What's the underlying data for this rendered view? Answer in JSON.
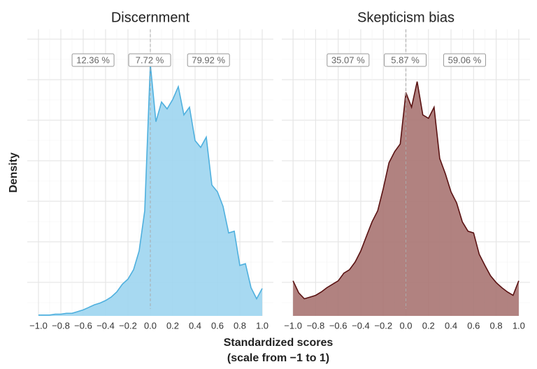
{
  "shared": {
    "ylabel": "Density",
    "xlabel": [
      "Standardized scores",
      "(scale from −1 to 1)"
    ]
  },
  "chart_data": [
    {
      "type": "area",
      "title": "Discernment",
      "fill": "#9dd5f0",
      "color": "#4fb0de",
      "x": [
        -1.0,
        -0.95,
        -0.9,
        -0.85,
        -0.8,
        -0.75,
        -0.7,
        -0.65,
        -0.6,
        -0.55,
        -0.5,
        -0.45,
        -0.4,
        -0.35,
        -0.3,
        -0.25,
        -0.2,
        -0.15,
        -0.1,
        -0.05,
        0.0,
        0.05,
        0.1,
        0.15,
        0.2,
        0.25,
        0.3,
        0.35,
        0.4,
        0.45,
        0.5,
        0.55,
        0.6,
        0.65,
        0.7,
        0.75,
        0.8,
        0.85,
        0.9,
        0.95,
        1.0
      ],
      "values": [
        0.01,
        0.01,
        0.01,
        0.02,
        0.02,
        0.03,
        0.03,
        0.05,
        0.07,
        0.1,
        0.13,
        0.15,
        0.18,
        0.22,
        0.28,
        0.37,
        0.43,
        0.54,
        0.76,
        1.23,
        2.94,
        2.27,
        2.5,
        2.42,
        2.53,
        2.68,
        2.35,
        2.44,
        2.05,
        1.97,
        2.09,
        1.53,
        1.45,
        1.28,
        0.97,
        0.99,
        0.59,
        0.61,
        0.33,
        0.2,
        0.32
      ],
      "annotations": [
        {
          "value": 12.36,
          "label": "12.36 %"
        },
        {
          "value": 7.72,
          "label": "7.72 %"
        },
        {
          "value": 79.92,
          "label": "79.92 %"
        }
      ],
      "vline": 0,
      "xlim": [
        -1.1,
        1.1
      ],
      "ylim": [
        0,
        3.35
      ],
      "xticks": [
        {
          "value": -1.0,
          "label": "−1.0"
        },
        {
          "value": -0.8,
          "label": "−0.8"
        },
        {
          "value": -0.6,
          "label": "−0.6"
        },
        {
          "value": -0.4,
          "label": "−0.4"
        },
        {
          "value": -0.2,
          "label": "−0.2"
        },
        {
          "value": 0.0,
          "label": "0.0"
        },
        0.2,
        0.4,
        0.6,
        0.8,
        {
          "value": 1.0,
          "label": "1.0"
        }
      ],
      "grid": true
    },
    {
      "type": "area",
      "title": "Skepticism bias",
      "fill": "#a87472",
      "color": "#5a1212",
      "x": [
        -1.0,
        -0.95,
        -0.9,
        -0.85,
        -0.8,
        -0.75,
        -0.7,
        -0.65,
        -0.6,
        -0.55,
        -0.5,
        -0.45,
        -0.4,
        -0.35,
        -0.3,
        -0.25,
        -0.2,
        -0.15,
        -0.1,
        -0.05,
        0.0,
        0.05,
        0.1,
        0.15,
        0.2,
        0.25,
        0.3,
        0.35,
        0.4,
        0.45,
        0.5,
        0.55,
        0.6,
        0.65,
        0.7,
        0.75,
        0.8,
        0.85,
        0.9,
        0.95,
        1.0
      ],
      "values": [
        0.41,
        0.27,
        0.2,
        0.22,
        0.24,
        0.28,
        0.33,
        0.37,
        0.41,
        0.5,
        0.54,
        0.63,
        0.76,
        0.93,
        1.1,
        1.23,
        1.49,
        1.79,
        1.92,
        2.01,
        2.61,
        2.44,
        2.74,
        2.35,
        2.31,
        2.44,
        1.84,
        1.66,
        1.45,
        1.32,
        1.1,
        0.99,
        0.97,
        0.72,
        0.59,
        0.47,
        0.39,
        0.33,
        0.28,
        0.24,
        0.41
      ],
      "annotations": [
        {
          "value": 35.07,
          "label": "35.07 %"
        },
        {
          "value": 5.87,
          "label": "5.87 %"
        },
        {
          "value": 59.06,
          "label": "59.06 %"
        }
      ],
      "vline": 0,
      "xlim": [
        -1.1,
        1.1
      ],
      "ylim": [
        0,
        3.35
      ],
      "xticks": [
        {
          "value": -1.0,
          "label": "−1.0"
        },
        {
          "value": -0.8,
          "label": "−0.8"
        },
        {
          "value": -0.6,
          "label": "−0.6"
        },
        {
          "value": -0.4,
          "label": "−0.4"
        },
        {
          "value": -0.2,
          "label": "−0.2"
        },
        {
          "value": 0.0,
          "label": "0.0"
        },
        0.2,
        0.4,
        0.6,
        0.8,
        {
          "value": 1.0,
          "label": "1.0"
        }
      ],
      "grid": true
    }
  ]
}
